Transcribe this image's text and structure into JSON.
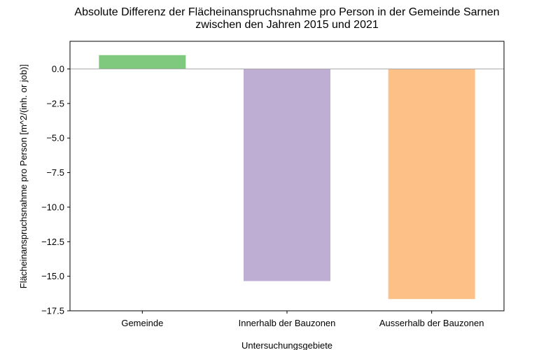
{
  "chart_data": {
    "type": "bar",
    "title_line1": "Absolute Differenz der Flächeinanspruchsnahme pro Person in der Gemeinde Sarnen",
    "title_line2": "zwischen den Jahren 2015 und 2021",
    "xlabel": "Untersuchungsgebiete",
    "ylabel": "Flächeinanspruchsnahme pro Person [m^2/(inh. or job)]",
    "categories": [
      "Gemeinde",
      "Innerhalb der Bauzonen",
      "Ausserhalb der Bauzonen"
    ],
    "values": [
      1.0,
      -15.35,
      -16.65
    ],
    "colors": [
      "#7fc97f",
      "#beaed4",
      "#fdc086"
    ],
    "ylim": [
      -17.5,
      2.0
    ],
    "yticks": [
      0.0,
      -2.5,
      -5.0,
      -7.5,
      -10.0,
      -12.5,
      -15.0,
      -17.5
    ],
    "ytick_labels": [
      "0.0",
      "−2.5",
      "−5.0",
      "−7.5",
      "−10.0",
      "−12.5",
      "−15.0",
      "−17.5"
    ],
    "zero_line": true,
    "grid": false,
    "legend": false
  }
}
